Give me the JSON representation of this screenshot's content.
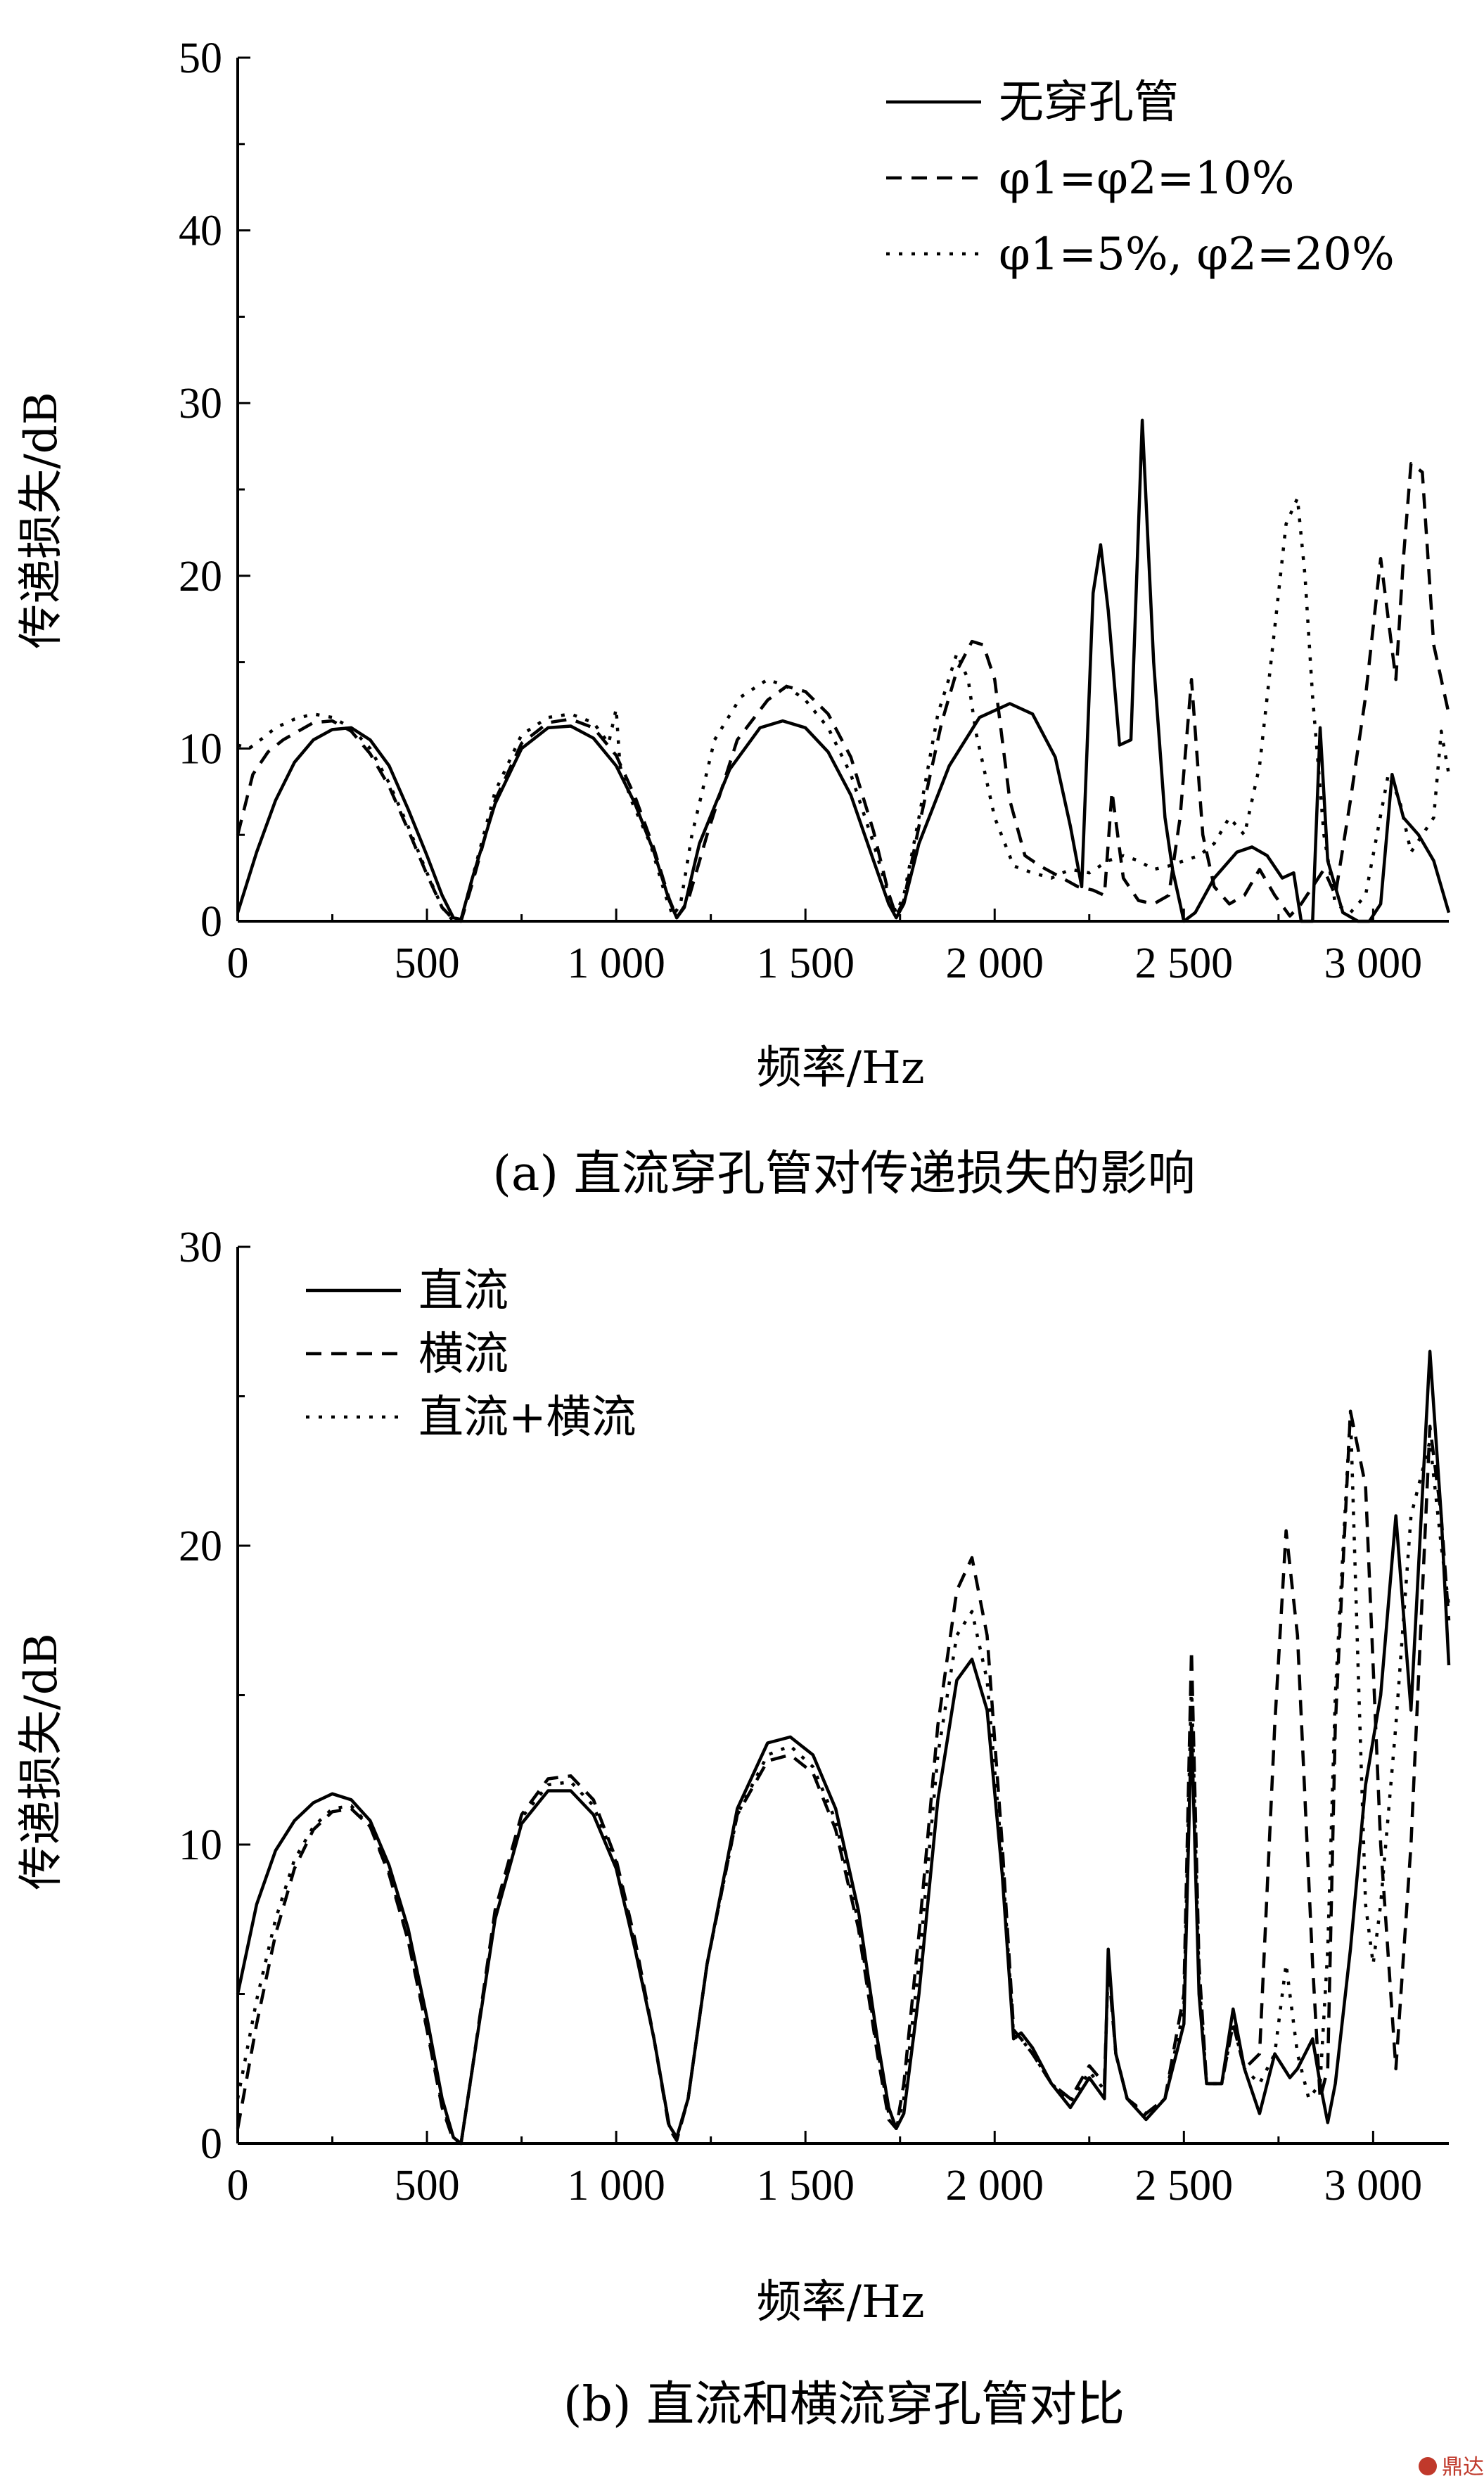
{
  "colors": {
    "line": "#000000",
    "background": "#ffffff",
    "watermark": "#c0392b"
  },
  "watermark": "鼎达信",
  "chart_data": [
    {
      "type": "line",
      "caption": "(a) 直流穿孔管对传递损失的影响",
      "xlabel": "频率/Hz",
      "ylabel": "传递损失/dB",
      "xlim": [
        0,
        3200
      ],
      "ylim": [
        0,
        50
      ],
      "xticks": [
        0,
        500,
        1000,
        1500,
        2000,
        2500,
        3000
      ],
      "xtick_labels": [
        "0",
        "500",
        "1 000",
        "1 500",
        "2 000",
        "2 500",
        "3 000"
      ],
      "yticks": [
        0,
        10,
        20,
        30,
        40,
        50
      ],
      "ytick_labels": [
        "0",
        "10",
        "20",
        "30",
        "40",
        "50"
      ],
      "legend_position": "top-right",
      "series": [
        {
          "name": "无穿孔管",
          "style": "solid",
          "x": [
            0,
            50,
            100,
            150,
            200,
            250,
            300,
            350,
            400,
            450,
            500,
            540,
            570,
            590,
            620,
            680,
            750,
            820,
            880,
            940,
            1000,
            1050,
            1100,
            1140,
            1160,
            1180,
            1220,
            1300,
            1380,
            1440,
            1500,
            1560,
            1620,
            1680,
            1720,
            1740,
            1760,
            1800,
            1880,
            1960,
            2040,
            2100,
            2160,
            2200,
            2230,
            2260,
            2280,
            2300,
            2330,
            2360,
            2390,
            2420,
            2450,
            2470,
            2500,
            2530,
            2580,
            2640,
            2680,
            2720,
            2760,
            2790,
            2810,
            2840,
            2860,
            2880,
            2920,
            2960,
            2990,
            3020,
            3050,
            3080,
            3120,
            3160,
            3200
          ],
          "y": [
            0.5,
            4,
            7,
            9.2,
            10.5,
            11.1,
            11.2,
            10.5,
            9,
            6.5,
            3.8,
            1.5,
            0.2,
            0.1,
            2.5,
            6.8,
            10,
            11.2,
            11.3,
            10.6,
            9,
            6.8,
            4,
            1.2,
            0.2,
            0.8,
            4.5,
            8.8,
            11.2,
            11.6,
            11.2,
            9.8,
            7.3,
            3.5,
            1,
            0.2,
            1,
            4.5,
            9,
            11.8,
            12.6,
            12,
            9.5,
            5.5,
            2,
            19,
            21.8,
            18,
            10.2,
            10.5,
            29,
            15,
            6,
            3,
            0,
            0.5,
            2.5,
            4,
            4.3,
            3.8,
            2.5,
            2.8,
            0,
            0,
            11.2,
            3.5,
            0.5,
            0,
            0,
            1,
            8.5,
            6,
            5,
            3.5,
            0.5
          ]
        },
        {
          "name": "φ1=φ2=10%",
          "style": "dashed",
          "x": [
            0,
            40,
            80,
            120,
            160,
            200,
            250,
            300,
            350,
            400,
            450,
            500,
            540,
            570,
            590,
            620,
            680,
            750,
            820,
            880,
            940,
            1000,
            1050,
            1100,
            1140,
            1160,
            1190,
            1240,
            1320,
            1400,
            1450,
            1500,
            1560,
            1620,
            1680,
            1720,
            1740,
            1760,
            1800,
            1860,
            1900,
            1940,
            1970,
            2000,
            2040,
            2080,
            2120,
            2170,
            2220,
            2260,
            2290,
            2310,
            2340,
            2380,
            2420,
            2460,
            2490,
            2520,
            2550,
            2580,
            2620,
            2660,
            2700,
            2740,
            2780,
            2810,
            2840,
            2870,
            2900,
            2940,
            2980,
            3020,
            3060,
            3080,
            3100,
            3130,
            3160,
            3200
          ],
          "y": [
            5,
            8.5,
            9.8,
            10.5,
            11,
            11.5,
            11.6,
            11,
            9.7,
            7.8,
            5.3,
            2.7,
            0.8,
            0.1,
            0,
            2.2,
            7,
            10.3,
            11.5,
            11.7,
            11.2,
            9.6,
            7.2,
            4.2,
            1.3,
            0.2,
            1.2,
            5,
            10.5,
            12.8,
            13.6,
            13.3,
            12,
            9.5,
            5.2,
            1.6,
            0.3,
            1.2,
            5.5,
            11.5,
            14.5,
            16.2,
            16,
            14,
            7,
            3.8,
            3.2,
            2.6,
            2,
            1.8,
            1.5,
            7.5,
            2.5,
            1.2,
            1,
            1.5,
            6,
            14,
            5,
            2,
            1,
            1.5,
            3,
            1.5,
            0.3,
            1,
            2,
            3,
            1.5,
            7,
            13,
            21,
            14,
            21,
            26.5,
            26,
            16,
            12
          ]
        },
        {
          "name": "φ1=5%, φ2=20%",
          "style": "dotted",
          "x": [
            0,
            30,
            60,
            100,
            150,
            200,
            250,
            300,
            350,
            400,
            450,
            500,
            540,
            570,
            590,
            620,
            680,
            750,
            820,
            880,
            940,
            980,
            1000,
            1010,
            1040,
            1090,
            1130,
            1150,
            1170,
            1200,
            1260,
            1330,
            1400,
            1450,
            1500,
            1560,
            1620,
            1680,
            1720,
            1740,
            1760,
            1800,
            1850,
            1900,
            1930,
            1950,
            2000,
            2050,
            2100,
            2150,
            2200,
            2250,
            2300,
            2340,
            2380,
            2420,
            2460,
            2500,
            2540,
            2580,
            2620,
            2660,
            2700,
            2740,
            2770,
            2800,
            2820,
            2840,
            2870,
            2900,
            2940,
            2980,
            3010,
            3040,
            3070,
            3100,
            3130,
            3160,
            3180,
            3200
          ],
          "y": [
            10.2,
            10,
            10.5,
            11.2,
            11.7,
            12,
            11.8,
            11.2,
            10,
            8,
            5.5,
            2.8,
            0.8,
            0,
            0.1,
            2.5,
            7.5,
            10.8,
            11.8,
            12,
            11.5,
            10.3,
            12.3,
            9,
            7,
            4.5,
            1.5,
            0.3,
            1,
            5,
            10.5,
            13,
            14,
            13.6,
            12.8,
            11.2,
            8.5,
            4.5,
            1.5,
            0.5,
            1.5,
            6,
            12,
            15.5,
            14,
            11,
            6,
            3.2,
            2.8,
            2.5,
            3,
            2.8,
            3.5,
            3.8,
            3.5,
            3,
            3.2,
            3.5,
            3.8,
            4.5,
            6,
            5,
            9,
            17,
            23,
            24.5,
            20,
            13,
            5,
            1,
            0.5,
            1.5,
            5,
            8.5,
            7,
            4,
            5,
            6,
            11,
            8.5
          ]
        }
      ]
    },
    {
      "type": "line",
      "caption": "(b) 直流和横流穿孔管对比",
      "xlabel": "频率/Hz",
      "ylabel": "传递损失/dB",
      "xlim": [
        0,
        3200
      ],
      "ylim": [
        0,
        30
      ],
      "xticks": [
        0,
        500,
        1000,
        1500,
        2000,
        2500,
        3000
      ],
      "xtick_labels": [
        "0",
        "500",
        "1 000",
        "1 500",
        "2 000",
        "2 500",
        "3 000"
      ],
      "yticks": [
        0,
        10,
        20,
        30
      ],
      "ytick_labels": [
        "0",
        "10",
        "20",
        "30"
      ],
      "legend_position": "top-left",
      "series": [
        {
          "name": "直流",
          "style": "solid",
          "x": [
            0,
            50,
            100,
            150,
            200,
            250,
            300,
            350,
            400,
            450,
            500,
            540,
            570,
            590,
            620,
            680,
            750,
            820,
            880,
            940,
            1000,
            1050,
            1100,
            1140,
            1160,
            1190,
            1240,
            1320,
            1400,
            1460,
            1520,
            1580,
            1640,
            1690,
            1720,
            1740,
            1760,
            1800,
            1850,
            1900,
            1940,
            1980,
            2020,
            2050,
            2070,
            2100,
            2150,
            2200,
            2250,
            2290,
            2300,
            2320,
            2350,
            2400,
            2450,
            2500,
            2520,
            2540,
            2560,
            2600,
            2630,
            2660,
            2700,
            2740,
            2780,
            2800,
            2840,
            2860,
            2880,
            2900,
            2940,
            2980,
            3020,
            3060,
            3100,
            3150,
            3180,
            3200
          ],
          "y": [
            5,
            8,
            9.8,
            10.8,
            11.4,
            11.7,
            11.5,
            10.8,
            9.3,
            7.2,
            4.2,
            1.5,
            0.2,
            0,
            2.5,
            7.5,
            10.7,
            11.8,
            11.8,
            11,
            9.2,
            6.5,
            3.5,
            0.6,
            0.2,
            1.5,
            6,
            11.2,
            13.4,
            13.6,
            13,
            11.2,
            7.8,
            3.5,
            1.2,
            0.5,
            1,
            5,
            11.5,
            15.5,
            16.2,
            14.5,
            9,
            3.5,
            3.7,
            3.2,
            2,
            1.2,
            2.2,
            1.5,
            6.5,
            3,
            1.5,
            0.8,
            1.5,
            4,
            14,
            5,
            2,
            2,
            4.5,
            2.5,
            1,
            3,
            2.2,
            2.5,
            3.5,
            2,
            0.7,
            2,
            6.5,
            12,
            15,
            21,
            14.5,
            26.5,
            21,
            16
          ]
        },
        {
          "name": "横流",
          "style": "dashed",
          "x": [
            0,
            50,
            100,
            150,
            200,
            250,
            300,
            350,
            400,
            450,
            500,
            540,
            570,
            590,
            620,
            680,
            750,
            820,
            880,
            940,
            1000,
            1050,
            1100,
            1140,
            1160,
            1190,
            1240,
            1320,
            1400,
            1460,
            1520,
            1580,
            1640,
            1690,
            1720,
            1740,
            1760,
            1800,
            1850,
            1900,
            1940,
            1980,
            2020,
            2050,
            2070,
            2100,
            2150,
            2200,
            2250,
            2290,
            2300,
            2320,
            2350,
            2400,
            2450,
            2500,
            2520,
            2540,
            2560,
            2600,
            2630,
            2660,
            2700,
            2740,
            2770,
            2800,
            2840,
            2860,
            2880,
            2900,
            2940,
            2980,
            3020,
            3060,
            3100,
            3150,
            3180,
            3200
          ],
          "y": [
            0.5,
            4,
            7,
            9.2,
            10.5,
            11.1,
            11.2,
            10.6,
            9,
            6.8,
            3.8,
            1.2,
            0.1,
            0,
            2.5,
            7.8,
            11,
            12.2,
            12.3,
            11.5,
            9.5,
            6.8,
            3.5,
            0.5,
            0.1,
            1.5,
            6,
            11,
            12.8,
            13,
            12.4,
            10.5,
            7.2,
            3,
            0.8,
            0.5,
            2,
            7,
            14,
            18.5,
            19.6,
            17,
            10,
            3.8,
            3.5,
            3,
            2,
            1.5,
            2.6,
            2,
            6,
            3,
            1.5,
            1,
            1.5,
            5,
            16.5,
            6,
            2,
            2,
            4,
            2.5,
            3,
            14,
            20.5,
            17,
            6,
            1.5,
            2.5,
            14,
            24.5,
            22,
            10,
            2.5,
            10,
            24,
            21,
            17.5
          ]
        },
        {
          "name": "直流+横流",
          "style": "dotted",
          "x": [
            0,
            50,
            100,
            150,
            200,
            250,
            300,
            350,
            400,
            450,
            500,
            540,
            570,
            590,
            620,
            680,
            750,
            820,
            880,
            940,
            1000,
            1050,
            1100,
            1140,
            1160,
            1190,
            1240,
            1320,
            1400,
            1460,
            1520,
            1580,
            1640,
            1690,
            1720,
            1740,
            1760,
            1800,
            1850,
            1900,
            1940,
            1980,
            2020,
            2050,
            2070,
            2100,
            2150,
            2200,
            2250,
            2290,
            2300,
            2320,
            2350,
            2400,
            2450,
            2500,
            2520,
            2540,
            2560,
            2600,
            2630,
            2660,
            2700,
            2740,
            2770,
            2800,
            2830,
            2860,
            2880,
            2900,
            2940,
            2960,
            2980,
            3000,
            3020,
            3060,
            3100,
            3150,
            3180,
            3200
          ],
          "y": [
            1.5,
            4.8,
            7.5,
            9.5,
            10.6,
            11.2,
            11.3,
            10.6,
            9.1,
            6.8,
            3.9,
            1.3,
            0.2,
            0,
            2.5,
            7.6,
            10.9,
            12,
            12.1,
            11.3,
            9.4,
            6.6,
            3.5,
            0.6,
            0.2,
            1.5,
            6,
            11,
            13,
            13.3,
            12.6,
            10.8,
            7.4,
            3.2,
            1,
            0.5,
            1.5,
            6,
            13,
            17,
            17.8,
            15.5,
            9.5,
            3.6,
            3.5,
            3,
            2,
            1.4,
            2.4,
            1.8,
            6,
            3,
            1.5,
            0.9,
            1.5,
            4.5,
            15.5,
            5.5,
            2,
            2,
            4,
            2.5,
            2,
            3,
            6,
            3,
            1.5,
            2,
            6.5,
            15,
            24.5,
            16,
            8,
            6,
            8,
            14,
            21,
            23.5,
            20,
            18
          ]
        }
      ]
    }
  ]
}
